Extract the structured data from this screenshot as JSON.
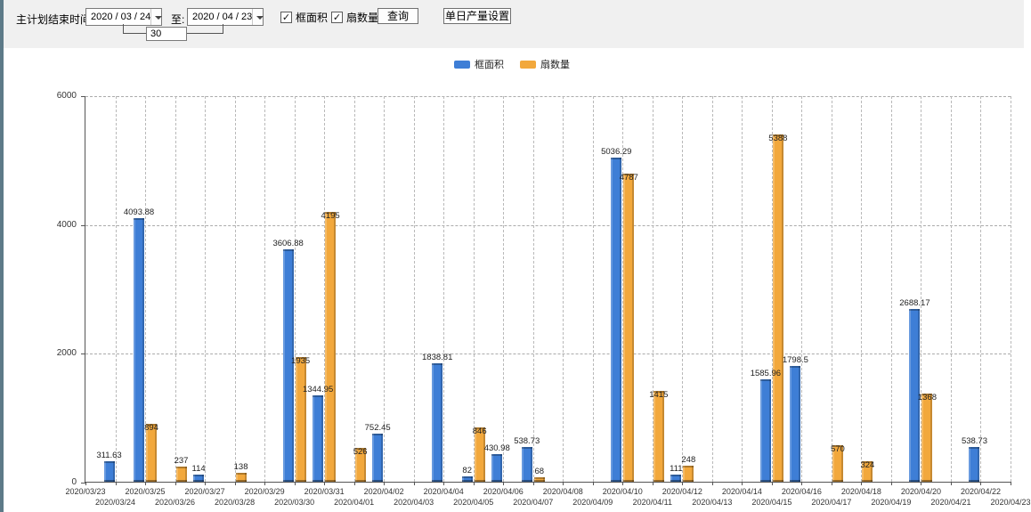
{
  "toolbar": {
    "plan_end_label": "主计划结束时间:",
    "date_from": "2020 / 03 / 24",
    "to_label": "至:",
    "date_to": "2020 / 04 / 23",
    "interval_days": "30",
    "checkbox_area_label": "框面积",
    "checkbox_area_checked": "✓",
    "checkbox_fan_label": "扇数量",
    "checkbox_fan_checked": "✓",
    "query_button_label": "查询",
    "daily_output_button_label": "单日产量设置"
  },
  "chart_data": {
    "type": "bar",
    "title": "",
    "xlabel": "",
    "ylabel": "",
    "ylim": [
      0,
      6000
    ],
    "yticks": [
      0,
      2000,
      4000,
      6000
    ],
    "grid": true,
    "legend_position": "top-center",
    "categories": [
      "2020/03/23",
      "2020/03/24",
      "2020/03/25",
      "2020/03/26",
      "2020/03/27",
      "2020/03/28",
      "2020/03/29",
      "2020/03/30",
      "2020/03/31",
      "2020/04/01",
      "2020/04/02",
      "2020/04/03",
      "2020/04/04",
      "2020/04/05",
      "2020/04/06",
      "2020/04/07",
      "2020/04/08",
      "2020/04/09",
      "2020/04/10",
      "2020/04/11",
      "2020/04/12",
      "2020/04/13",
      "2020/04/14",
      "2020/04/15",
      "2020/04/16",
      "2020/04/17",
      "2020/04/18",
      "2020/04/19",
      "2020/04/20",
      "2020/04/21",
      "2020/04/22",
      "2020/04/23"
    ],
    "series": [
      {
        "name": "框面积",
        "color": "#3E7ED6",
        "values": [
          null,
          311.63,
          4093.88,
          null,
          114,
          null,
          null,
          3606.88,
          1344.95,
          null,
          752.45,
          null,
          1838.81,
          82,
          430.98,
          538.73,
          null,
          null,
          5036.29,
          null,
          111,
          null,
          null,
          1585.96,
          1798.5,
          null,
          null,
          null,
          2688.17,
          null,
          538.73,
          null
        ]
      },
      {
        "name": "扇数量",
        "color": "#F2A83C",
        "values": [
          null,
          null,
          894,
          237,
          null,
          138,
          null,
          1935,
          4195,
          526,
          null,
          null,
          null,
          846,
          null,
          68,
          null,
          null,
          4787,
          1415,
          248,
          null,
          null,
          5388,
          null,
          570,
          324,
          null,
          1368,
          null,
          null,
          null
        ]
      }
    ]
  }
}
